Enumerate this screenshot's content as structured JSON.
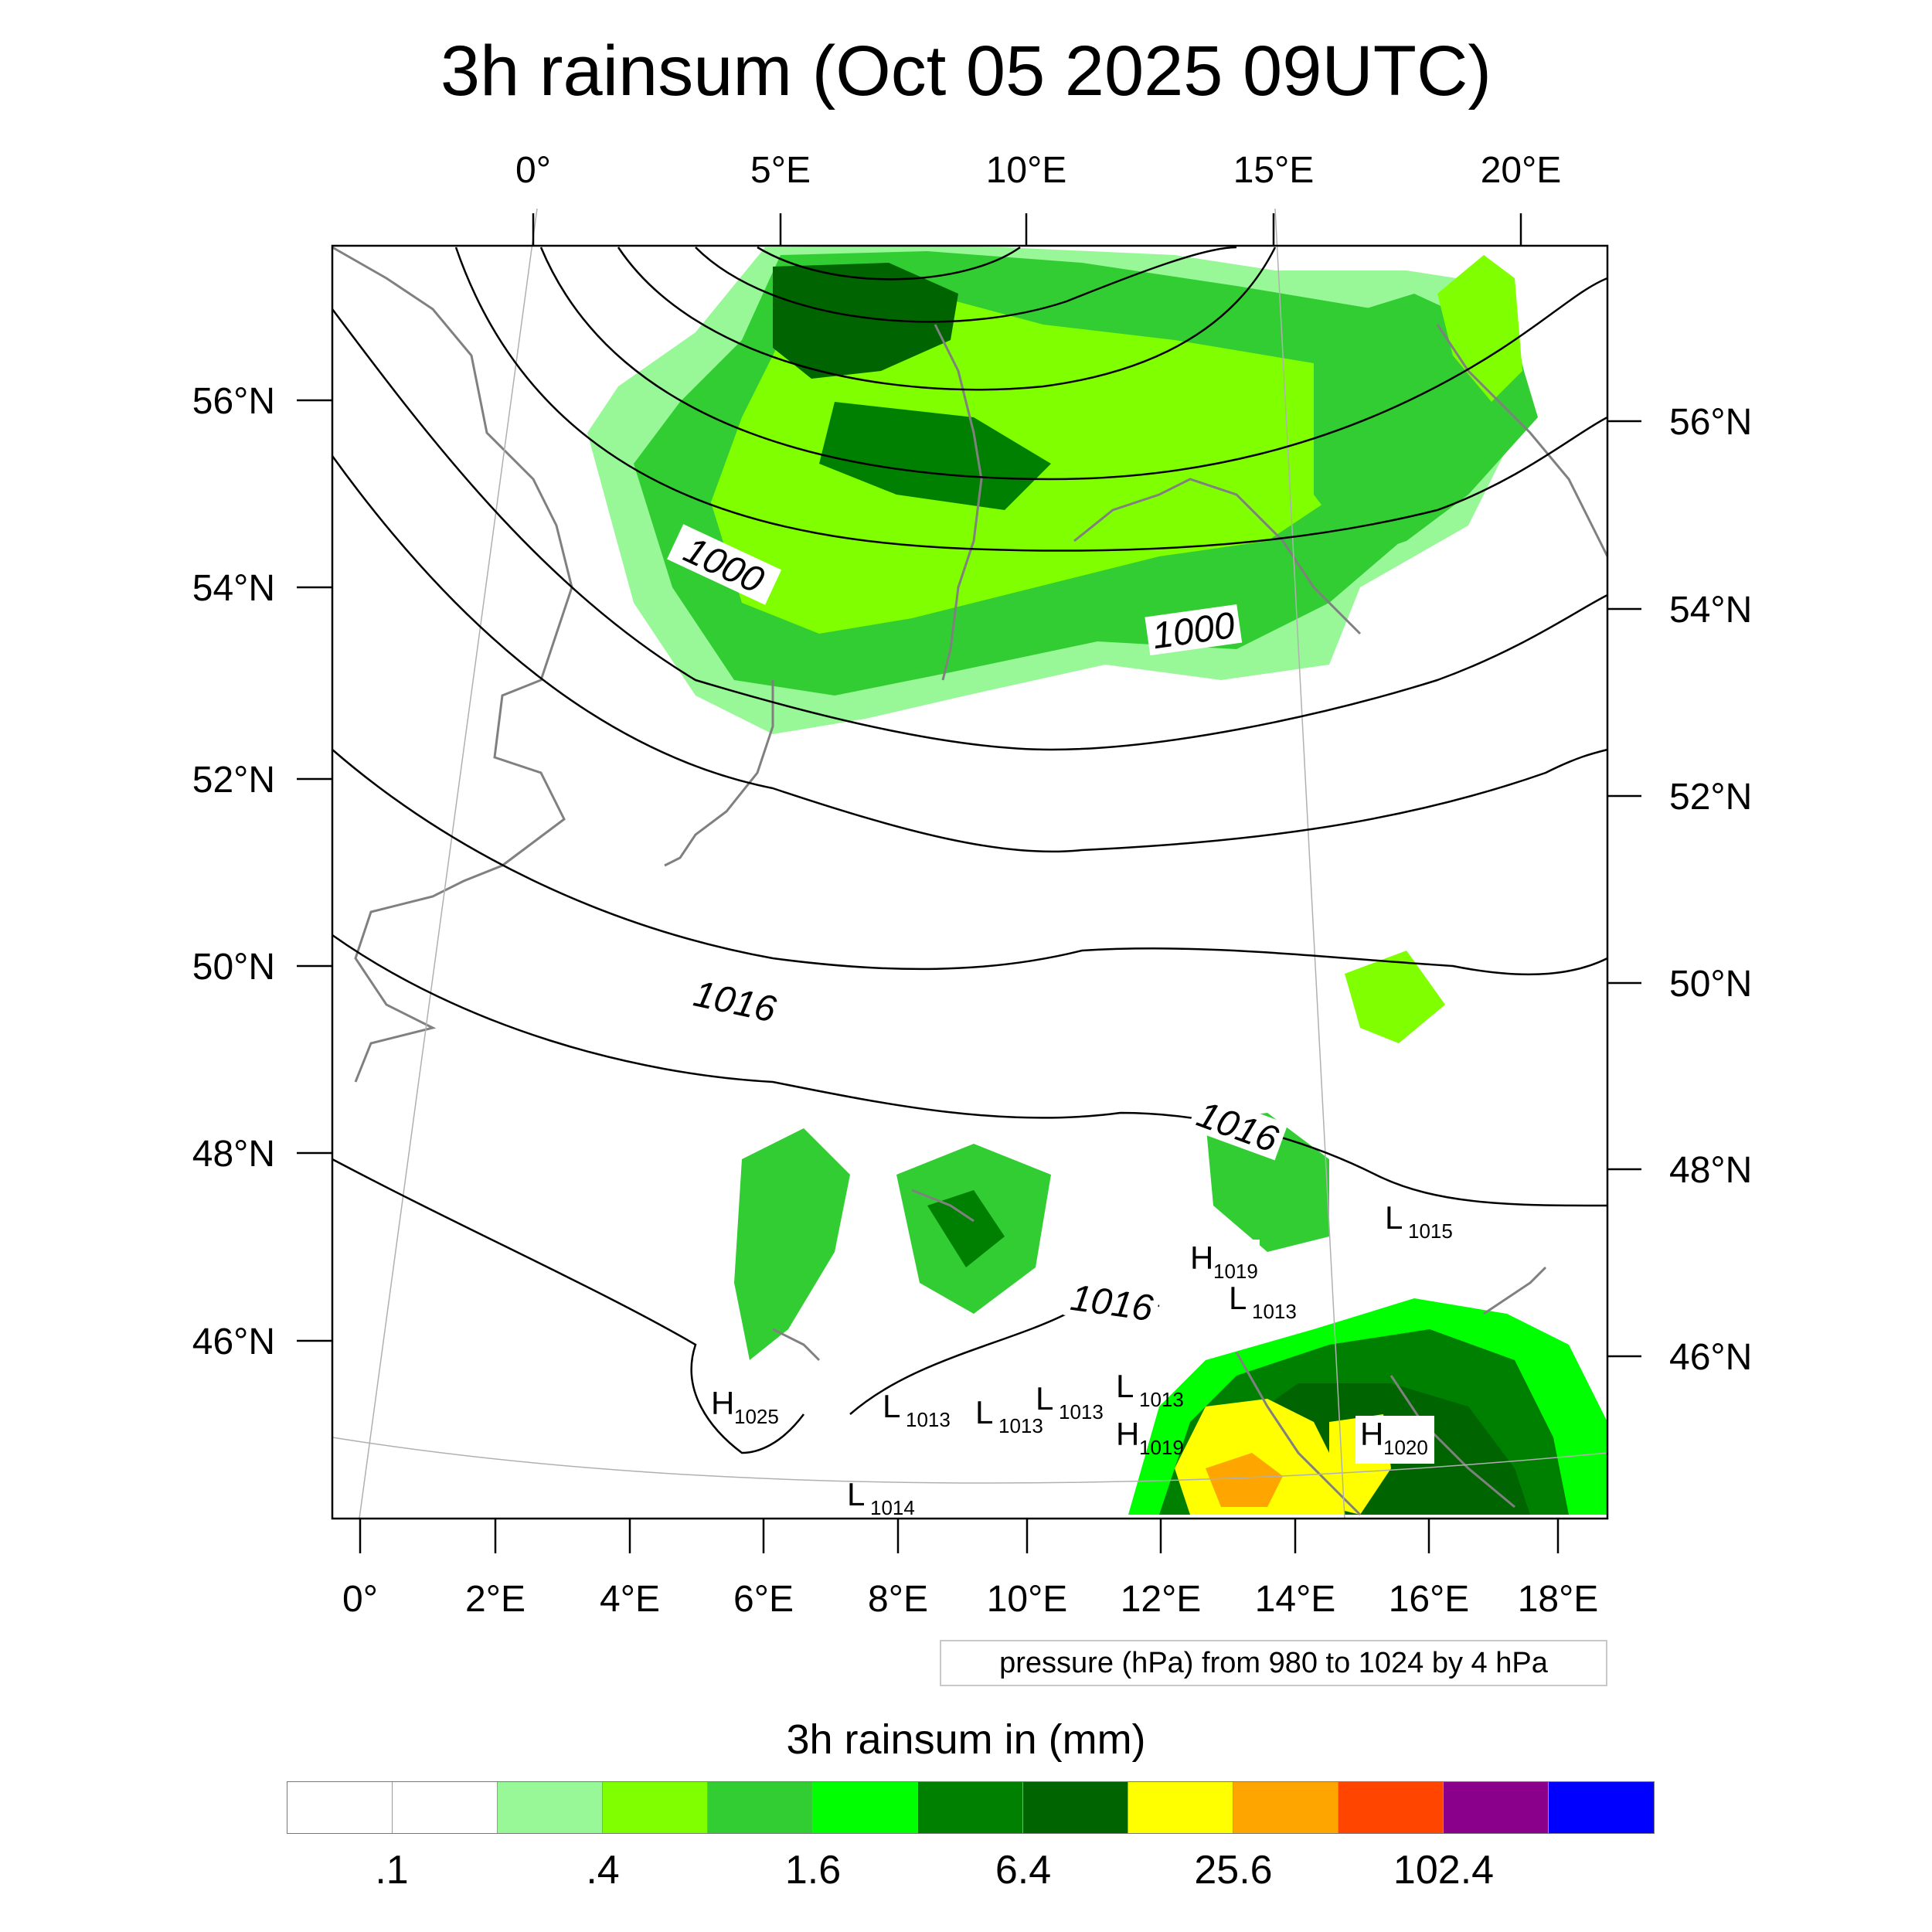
{
  "title": "3h rainsum (Oct 05 2025 09UTC)",
  "top_lon_labels": [
    "0°",
    "5°E",
    "10°E",
    "15°E",
    "20°E"
  ],
  "bottom_lon_labels": [
    "0°",
    "2°E",
    "4°E",
    "6°E",
    "8°E",
    "10°E",
    "12°E",
    "14°E",
    "16°E",
    "18°E"
  ],
  "left_lat_labels": [
    "56°N",
    "54°N",
    "52°N",
    "50°N",
    "48°N",
    "46°N"
  ],
  "right_lat_labels": [
    "56°N",
    "54°N",
    "52°N",
    "50°N",
    "48°N",
    "46°N"
  ],
  "contour_labels": [
    "1000",
    "1000",
    "1016",
    "1016",
    "1016"
  ],
  "pressure_systems": [
    {
      "type": "H",
      "value": "1025"
    },
    {
      "type": "L",
      "value": "1013"
    },
    {
      "type": "L",
      "value": "1013"
    },
    {
      "type": "L",
      "value": "1013"
    },
    {
      "type": "L",
      "value": "1013"
    },
    {
      "type": "H",
      "value": "1019"
    },
    {
      "type": "L",
      "value": "1014"
    },
    {
      "type": "H",
      "value": "1019"
    },
    {
      "type": "L",
      "value": "1013"
    },
    {
      "type": "L",
      "value": "1015"
    },
    {
      "type": "H",
      "value": "1020"
    }
  ],
  "info_box": "pressure (hPa) from 980 to 1024 by 4 hPa",
  "colorbar": {
    "title": "3h rainsum in (mm)",
    "colors": [
      "#ffffff",
      "#ffffff",
      "#98f898",
      "#80ff00",
      "#32cd32",
      "#00ff00",
      "#008000",
      "#006400",
      "#ffff00",
      "#ffa500",
      "#ff4500",
      "#8b008b",
      "#0000ff"
    ],
    "labels": [
      ".1",
      ".4",
      "1.6",
      "6.4",
      "25.6",
      "102.4"
    ]
  },
  "colors": {
    "coastline": "#808080",
    "isobar": "#000000",
    "grid": "#b0b0b0"
  }
}
